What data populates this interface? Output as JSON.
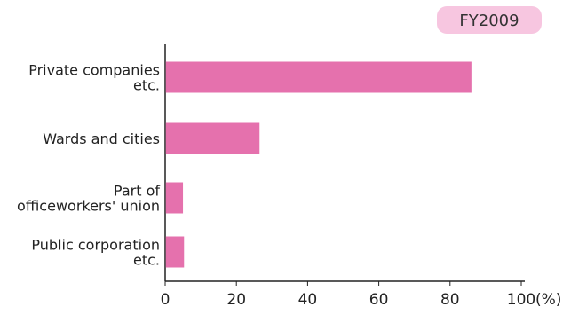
{
  "badge": {
    "label": "FY2009"
  },
  "chart_data": {
    "type": "bar",
    "orientation": "horizontal",
    "categories": [
      [
        "Private companies",
        "etc."
      ],
      [
        "Wards and cities"
      ],
      [
        "Part of",
        "officeworkers' union"
      ],
      [
        "Public corporation",
        "etc."
      ]
    ],
    "series": [
      {
        "values": [
          86,
          26.5,
          5,
          5.3
        ]
      }
    ],
    "xlim": [
      0,
      100
    ],
    "xticks": [
      "0",
      "20",
      "40",
      "60",
      "80",
      "100"
    ],
    "x_unit": "(%)",
    "title": "",
    "xlabel": "",
    "ylabel": "",
    "grid": false,
    "legend": "none",
    "colors": {
      "bar": "#e571ad",
      "badge_fill": "#f7c6e0",
      "axis": "#222222"
    }
  }
}
